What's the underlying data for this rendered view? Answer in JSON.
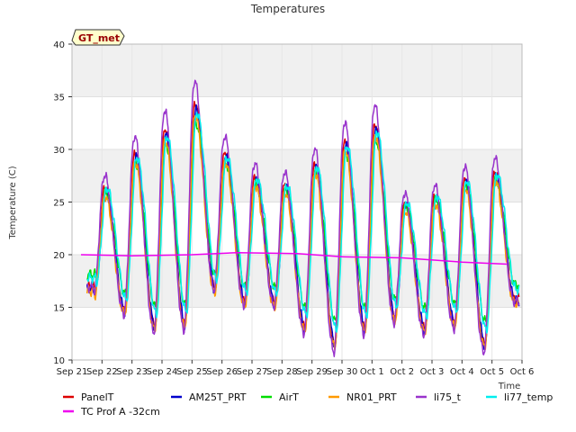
{
  "chart_data": {
    "type": "line",
    "title": "Temperatures",
    "xlabel": "Time",
    "ylabel": "Temperature (C)",
    "badge": "GT_met",
    "ylim": [
      10,
      40
    ],
    "xlim": [
      0,
      15
    ],
    "yticks": [
      10,
      15,
      20,
      25,
      30,
      35,
      40
    ],
    "xticks": [
      {
        "x": 0,
        "label": "Sep 21"
      },
      {
        "x": 1,
        "label": "Sep 22"
      },
      {
        "x": 2,
        "label": "Sep 23"
      },
      {
        "x": 3,
        "label": "Sep 24"
      },
      {
        "x": 4,
        "label": "Sep 25"
      },
      {
        "x": 5,
        "label": "Sep 26"
      },
      {
        "x": 6,
        "label": "Sep 27"
      },
      {
        "x": 7,
        "label": "Sep 28"
      },
      {
        "x": 8,
        "label": "Sep 29"
      },
      {
        "x": 9,
        "label": "Sep 30"
      },
      {
        "x": 10,
        "label": "Oct 1"
      },
      {
        "x": 11,
        "label": "Oct 2"
      },
      {
        "x": 12,
        "label": "Oct 3"
      },
      {
        "x": 13,
        "label": "Oct 4"
      },
      {
        "x": 14,
        "label": "Oct 5"
      },
      {
        "x": 15,
        "label": "Oct 6"
      }
    ],
    "bands": [
      [
        15,
        20
      ],
      [
        25,
        30
      ],
      [
        35,
        40
      ]
    ],
    "grid": true,
    "legend_position": "bottom",
    "daily": {
      "day_start": 0.5,
      "peak_frac": 0.6,
      "min_frac": 0.25,
      "peaks": [
        26.5,
        29.8,
        32.0,
        34.5,
        29.8,
        27.5,
        26.8,
        28.8,
        31.0,
        32.5,
        25.0,
        25.7,
        27.3,
        28.0
      ],
      "mins": [
        16.5,
        14.7,
        13.2,
        13.4,
        16.8,
        15.5,
        15.4,
        13.1,
        11.5,
        13.0,
        14.0,
        13.0,
        13.5,
        11.5,
        15.8
      ]
    },
    "series": [
      {
        "name": "PanelT",
        "color": "#dd0000",
        "scale": 1.0,
        "offset": 0.0,
        "lag": 0.0
      },
      {
        "name": "AM25T_PRT",
        "color": "#0000cc",
        "scale": 0.97,
        "offset": -0.3,
        "lag": 0.02
      },
      {
        "name": "AirT",
        "color": "#00dd00",
        "scale": 0.82,
        "offset": 0.6,
        "lag": 0.03
      },
      {
        "name": "NR01_PRT",
        "color": "#ff9900",
        "scale": 0.96,
        "offset": -0.6,
        "lag": 0.0
      },
      {
        "name": "li75_t",
        "color": "#9933cc",
        "scale": 1.12,
        "offset": 0.3,
        "lag": -0.02
      },
      {
        "name": "li77_temp",
        "color": "#00eeee",
        "scale": 0.9,
        "offset": 0.5,
        "lag": 0.06
      },
      {
        "name": "TC Prof A -32cm",
        "color": "#ee00ee",
        "x": [
          0.3,
          2.0,
          4.0,
          5.5,
          7.5,
          9.0,
          11.0,
          13.0,
          14.5
        ],
        "y": [
          20.0,
          19.9,
          20.0,
          20.2,
          20.1,
          19.8,
          19.7,
          19.3,
          19.1
        ]
      }
    ]
  }
}
